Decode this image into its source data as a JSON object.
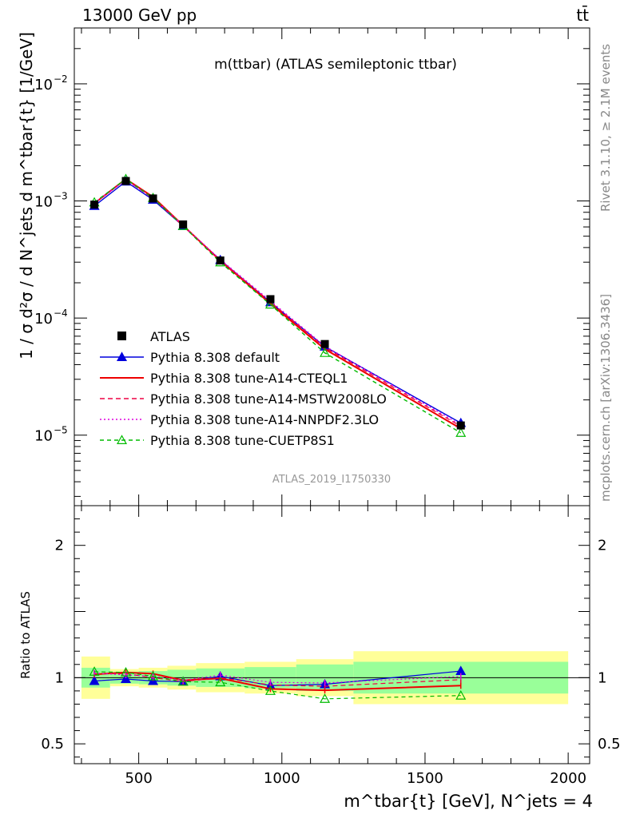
{
  "header": {
    "left": "13000 GeV pp",
    "right": "tt̄"
  },
  "side_text": {
    "rivet": "Rivet 3.1.10, ≥ 2.1M events",
    "mcplots": "mcplots.cern.ch [arXiv:1306.3436]"
  },
  "chart_data": {
    "type": "line",
    "title": "m(ttbar) (ATLAS semileptonic ttbar)",
    "analysis_label": "ATLAS_2019_I1750330",
    "ylabel": "1 / σ d²σ / d N^jets d m^tbar{t} [1/GeV]",
    "xlabel": "m^tbar{t} [GeV], N^jets = 4",
    "ratio_ylabel": "Ratio to ATLAS",
    "y_scale": "log",
    "xlim": [
      275,
      2075
    ],
    "ylim": [
      2.5e-06,
      0.03
    ],
    "ratio_ylim": [
      0.35,
      2.3
    ],
    "x_ticks": [
      {
        "value": 500,
        "label": "500"
      },
      {
        "value": 1000,
        "label": "1000"
      },
      {
        "value": 1500,
        "label": "1500"
      },
      {
        "value": 2000,
        "label": "2000"
      }
    ],
    "y_ticks": [
      {
        "value": 1e-05,
        "label": "10",
        "exp": "−5"
      },
      {
        "value": 0.0001,
        "label": "10",
        "exp": "−4"
      },
      {
        "value": 0.001,
        "label": "10",
        "exp": "−3"
      },
      {
        "value": 0.01,
        "label": "10",
        "exp": "−2"
      }
    ],
    "ratio_ticks": [
      {
        "value": 0.5,
        "label": "0.5"
      },
      {
        "value": 1,
        "label": "1"
      },
      {
        "value": 2,
        "label": "2"
      }
    ],
    "bins": [
      {
        "lo": 300,
        "hi": 400
      },
      {
        "lo": 400,
        "hi": 500
      },
      {
        "lo": 500,
        "hi": 600
      },
      {
        "lo": 600,
        "hi": 700
      },
      {
        "lo": 700,
        "hi": 870
      },
      {
        "lo": 870,
        "hi": 1050
      },
      {
        "lo": 1050,
        "hi": 1250
      },
      {
        "lo": 1250,
        "hi": 2000
      }
    ],
    "x": [
      345,
      455,
      550,
      655,
      785,
      960,
      1150,
      1625
    ],
    "data": {
      "name": "ATLAS",
      "values": [
        0.00093,
        0.00148,
        0.00105,
        0.00063,
        0.00031,
        0.000145,
        6e-05,
        1.21e-05
      ],
      "band_inner": [
        0.075,
        0.045,
        0.05,
        0.06,
        0.07,
        0.08,
        0.1,
        0.12
      ],
      "band_outer": [
        0.16,
        0.065,
        0.075,
        0.09,
        0.11,
        0.12,
        0.14,
        0.2
      ]
    },
    "series": [
      {
        "name": "Pythia 8.308 default",
        "color": "#0000dd",
        "dash": "",
        "marker": "triangle-filled",
        "ratio": [
          0.975,
          0.99,
          0.975,
          0.97,
          1.01,
          0.94,
          0.95,
          1.05
        ]
      },
      {
        "name": "Pythia 8.308 tune-A14-CTEQL1",
        "color": "#ee0000",
        "dash": "",
        "marker": "none",
        "ratio": [
          1.025,
          1.04,
          1.03,
          0.98,
          0.995,
          0.915,
          0.905,
          0.94
        ]
      },
      {
        "name": "Pythia 8.308 tune-A14-MSTW2008LO",
        "color": "#ee0044",
        "dash": "6,4",
        "marker": "none",
        "ratio": [
          1.03,
          1.03,
          1.0,
          0.97,
          1.0,
          0.945,
          0.935,
          0.985
        ]
      },
      {
        "name": "Pythia 8.308 tune-A14-NNPDF2.3LO",
        "color": "#dd00dd",
        "dash": "2,3",
        "marker": "none",
        "ratio": [
          1.035,
          1.02,
          1.01,
          0.98,
          1.02,
          0.965,
          0.96,
          1.01
        ]
      },
      {
        "name": "Pythia 8.308 tune-CUETP8S1",
        "color": "#00bb00",
        "dash": "5,4",
        "marker": "triangle-open",
        "ratio": [
          1.045,
          1.04,
          1.01,
          0.97,
          0.965,
          0.9,
          0.84,
          0.865
        ]
      }
    ]
  }
}
